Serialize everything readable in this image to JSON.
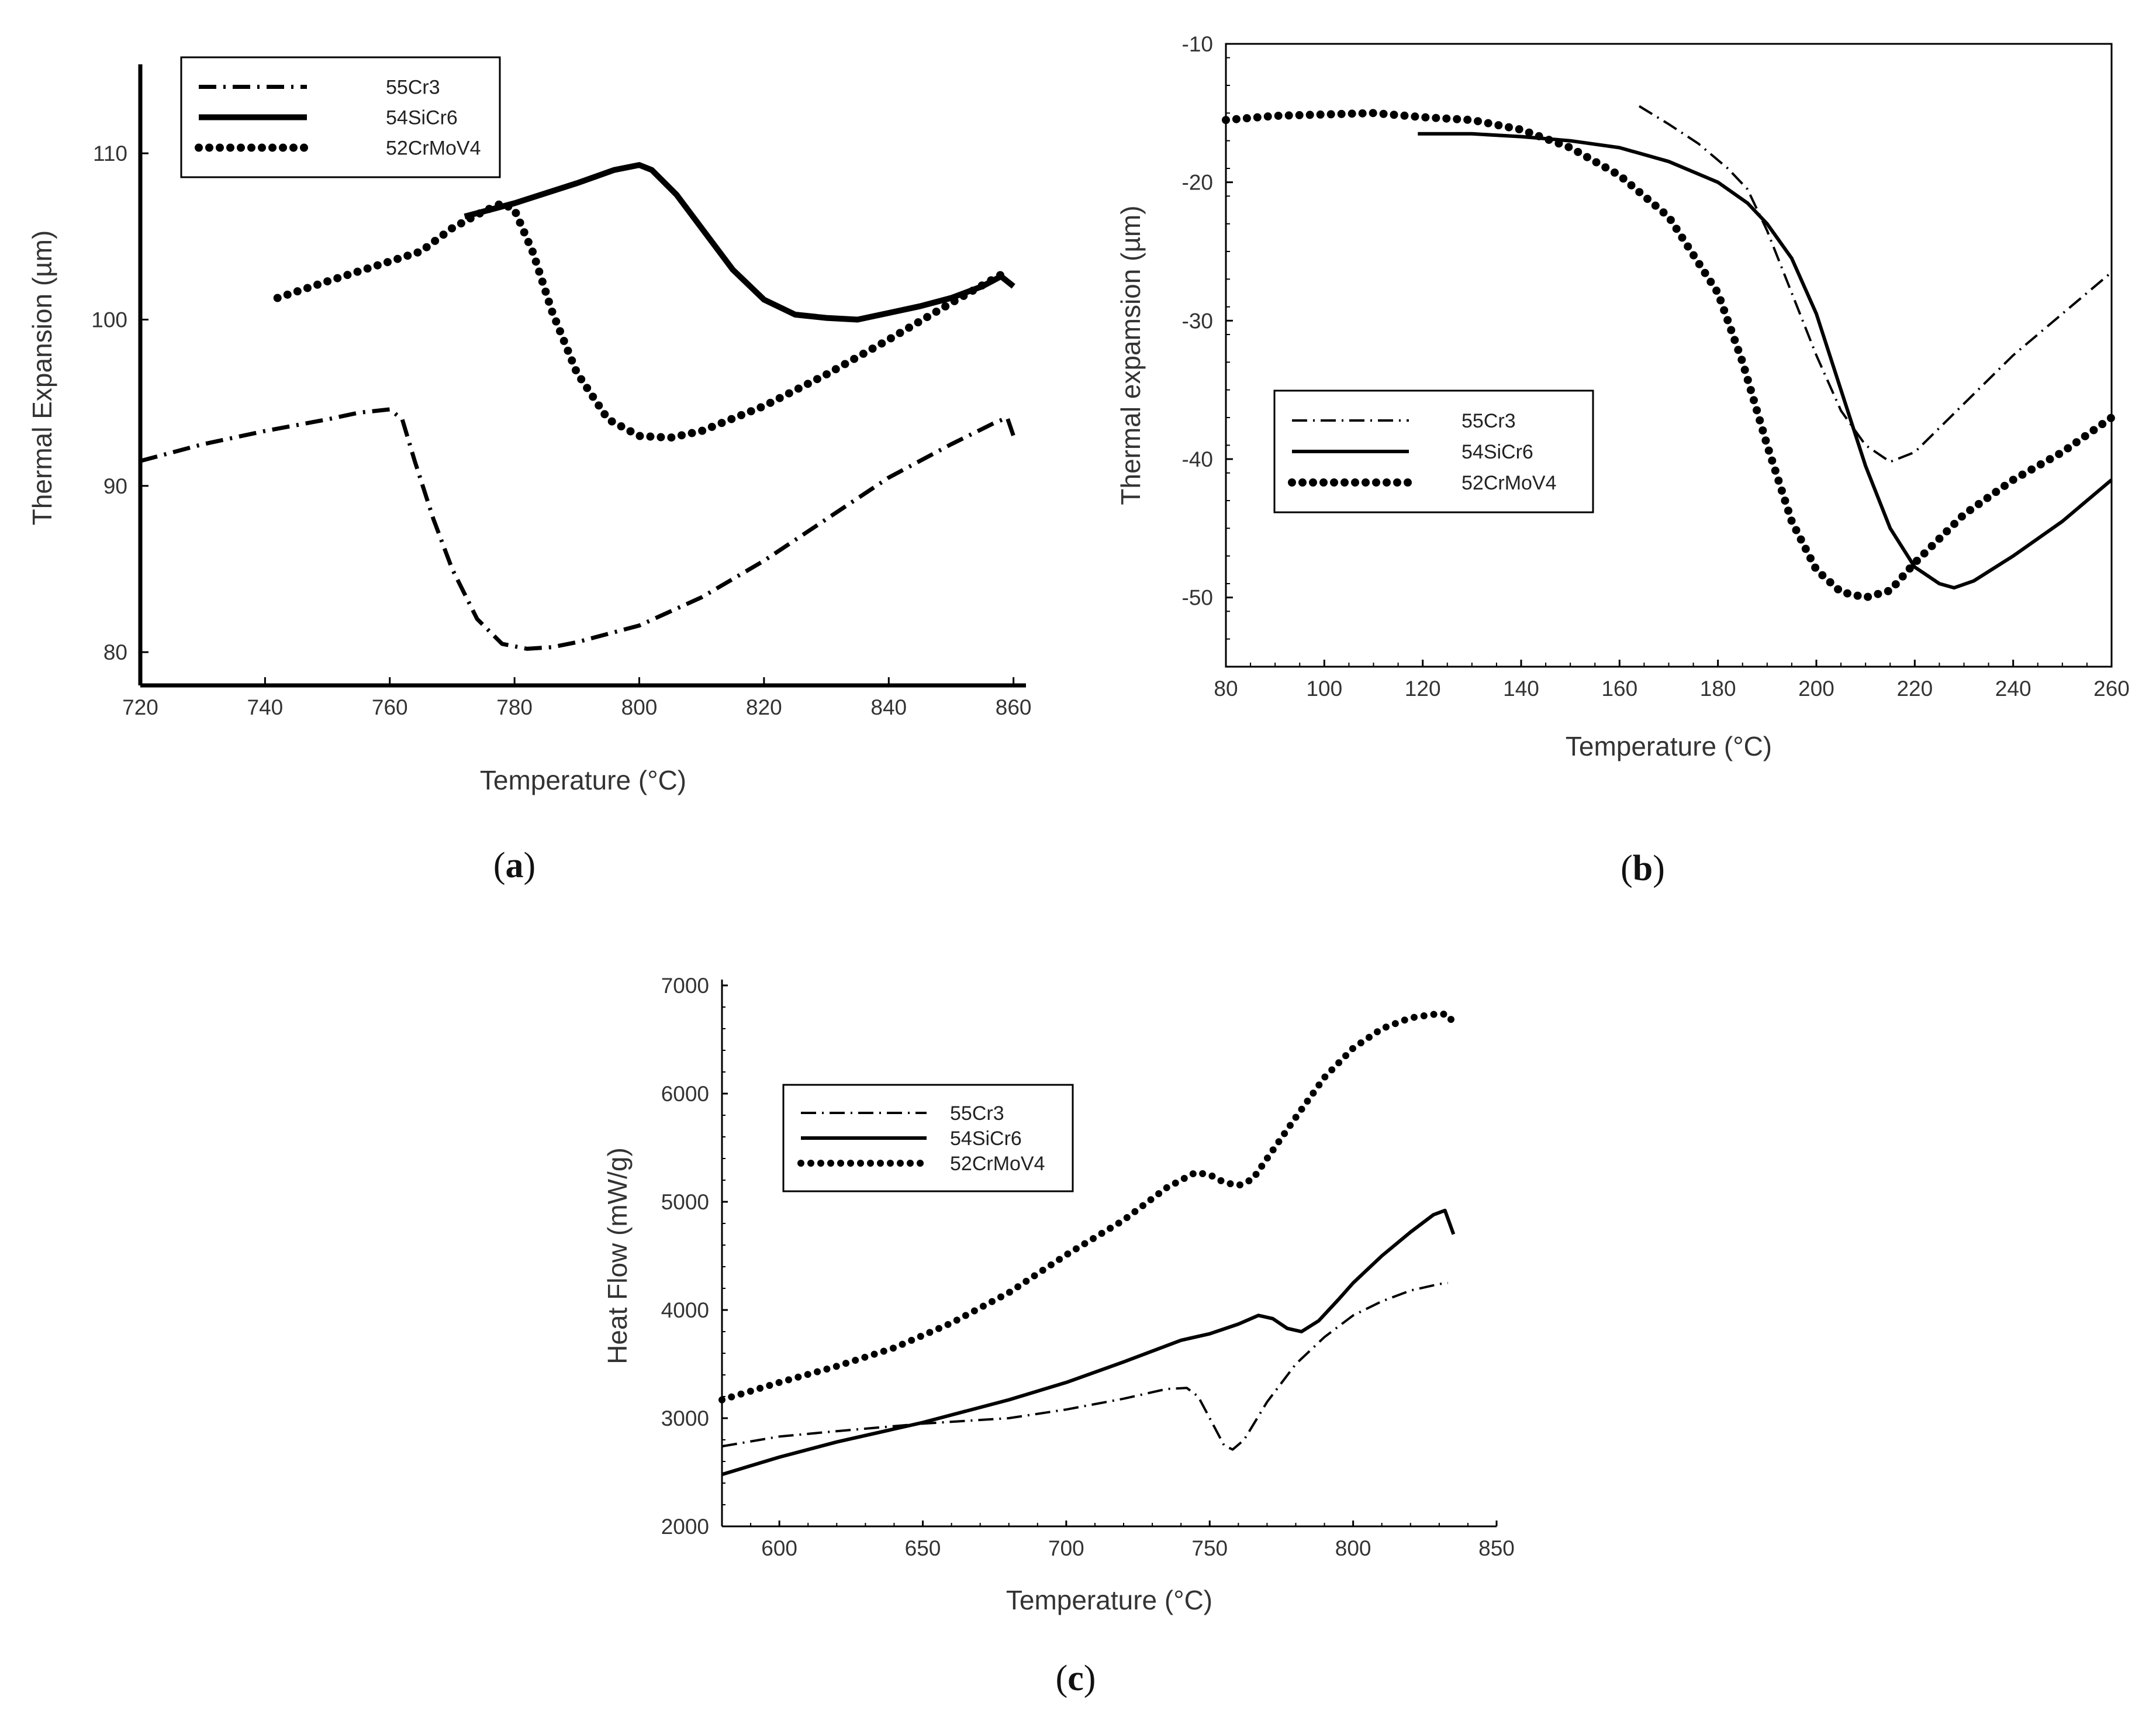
{
  "chart_data": [
    {
      "type": "line",
      "caption": "a",
      "xlabel": "Temperature (°C)",
      "ylabel": "Thermal Expansion (µm)",
      "xlim": [
        720,
        862
      ],
      "ylim": [
        78,
        115
      ],
      "xticks": [
        720,
        740,
        760,
        780,
        800,
        820,
        840,
        860
      ],
      "yticks": [
        80,
        90,
        100,
        110
      ],
      "legend_position": "top-left",
      "series": [
        {
          "name": "55Cr3",
          "style": "dashdot",
          "points": [
            [
              720,
              91.5
            ],
            [
              730,
              92.5
            ],
            [
              740,
              93.3
            ],
            [
              750,
              94.0
            ],
            [
              755,
              94.4
            ],
            [
              760,
              94.6
            ],
            [
              762,
              94.0
            ],
            [
              764,
              91.5
            ],
            [
              767,
              88.0
            ],
            [
              770,
              85.0
            ],
            [
              774,
              82.0
            ],
            [
              778,
              80.5
            ],
            [
              782,
              80.2
            ],
            [
              786,
              80.3
            ],
            [
              790,
              80.6
            ],
            [
              800,
              81.6
            ],
            [
              810,
              83.3
            ],
            [
              820,
              85.5
            ],
            [
              830,
              88.0
            ],
            [
              840,
              90.5
            ],
            [
              850,
              92.5
            ],
            [
              857,
              93.8
            ],
            [
              859,
              94.1
            ],
            [
              860,
              93.0
            ]
          ]
        },
        {
          "name": "54SiCr6",
          "style": "solid",
          "points": [
            [
              772,
              106.2
            ],
            [
              780,
              107.0
            ],
            [
              790,
              108.2
            ],
            [
              796,
              109.0
            ],
            [
              800,
              109.3
            ],
            [
              802,
              109.0
            ],
            [
              806,
              107.5
            ],
            [
              810,
              105.5
            ],
            [
              815,
              103.0
            ],
            [
              820,
              101.2
            ],
            [
              825,
              100.3
            ],
            [
              830,
              100.1
            ],
            [
              835,
              100.0
            ],
            [
              840,
              100.4
            ],
            [
              845,
              100.8
            ],
            [
              850,
              101.3
            ],
            [
              855,
              102.0
            ],
            [
              858,
              102.6
            ],
            [
              860,
              102.0
            ]
          ]
        },
        {
          "name": "52CrMoV4",
          "style": "dotted",
          "points": [
            [
              742,
              101.3
            ],
            [
              750,
              102.3
            ],
            [
              760,
              103.5
            ],
            [
              765,
              104.1
            ],
            [
              770,
              105.5
            ],
            [
              775,
              106.5
            ],
            [
              778,
              107.0
            ],
            [
              780,
              106.6
            ],
            [
              783,
              104.0
            ],
            [
              786,
              100.5
            ],
            [
              790,
              96.8
            ],
            [
              795,
              94.0
            ],
            [
              800,
              93.0
            ],
            [
              805,
              92.9
            ],
            [
              810,
              93.3
            ],
            [
              820,
              94.8
            ],
            [
              830,
              96.7
            ],
            [
              840,
              98.8
            ],
            [
              850,
              101.0
            ],
            [
              858,
              102.7
            ]
          ]
        }
      ]
    },
    {
      "type": "line",
      "caption": "b",
      "xlabel": "Temperature (°C)",
      "ylabel": "Thermal expamsion (µm)",
      "xlim": [
        80,
        260
      ],
      "ylim": [
        -55,
        -10
      ],
      "xticks": [
        80,
        100,
        120,
        140,
        160,
        180,
        200,
        220,
        240,
        260
      ],
      "yticks": [
        -10,
        -20,
        -30,
        -40,
        -50
      ],
      "legend_position": "center-left",
      "series": [
        {
          "name": "55Cr3",
          "style": "dashdot",
          "points": [
            [
              164,
              -14.5
            ],
            [
              170,
              -15.8
            ],
            [
              176,
              -17.2
            ],
            [
              182,
              -19.0
            ],
            [
              186,
              -20.5
            ],
            [
              190,
              -23.5
            ],
            [
              195,
              -28.0
            ],
            [
              200,
              -32.5
            ],
            [
              205,
              -36.5
            ],
            [
              210,
              -39.0
            ],
            [
              215,
              -40.2
            ],
            [
              220,
              -39.5
            ],
            [
              230,
              -36.0
            ],
            [
              240,
              -32.5
            ],
            [
              250,
              -29.5
            ],
            [
              260,
              -26.5
            ]
          ]
        },
        {
          "name": "54SiCr6",
          "style": "solid",
          "points": [
            [
              119,
              -16.5
            ],
            [
              130,
              -16.5
            ],
            [
              140,
              -16.7
            ],
            [
              150,
              -17.0
            ],
            [
              160,
              -17.5
            ],
            [
              170,
              -18.5
            ],
            [
              180,
              -20.0
            ],
            [
              186,
              -21.5
            ],
            [
              190,
              -23.0
            ],
            [
              195,
              -25.5
            ],
            [
              200,
              -29.5
            ],
            [
              205,
              -35.0
            ],
            [
              210,
              -40.5
            ],
            [
              215,
              -45.0
            ],
            [
              220,
              -47.8
            ],
            [
              225,
              -49.0
            ],
            [
              228,
              -49.3
            ],
            [
              232,
              -48.8
            ],
            [
              240,
              -47.0
            ],
            [
              250,
              -44.5
            ],
            [
              260,
              -41.5
            ]
          ]
        },
        {
          "name": "52CrMoV4",
          "style": "dotted",
          "points": [
            [
              80,
              -15.5
            ],
            [
              90,
              -15.2
            ],
            [
              100,
              -15.1
            ],
            [
              110,
              -15.0
            ],
            [
              120,
              -15.3
            ],
            [
              130,
              -15.5
            ],
            [
              140,
              -16.2
            ],
            [
              150,
              -17.5
            ],
            [
              160,
              -19.5
            ],
            [
              170,
              -22.5
            ],
            [
              180,
              -28.0
            ],
            [
              185,
              -33.0
            ],
            [
              190,
              -39.0
            ],
            [
              195,
              -44.5
            ],
            [
              200,
              -48.0
            ],
            [
              205,
              -49.6
            ],
            [
              210,
              -50.0
            ],
            [
              215,
              -49.5
            ],
            [
              220,
              -47.5
            ],
            [
              230,
              -44.0
            ],
            [
              240,
              -41.5
            ],
            [
              250,
              -39.5
            ],
            [
              260,
              -37.0
            ]
          ]
        }
      ]
    },
    {
      "type": "line",
      "caption": "c",
      "xlabel": "Temperature (°C)",
      "ylabel": "Heat Flow (mW/g)",
      "xlim": [
        580,
        850
      ],
      "ylim": [
        2000,
        7000
      ],
      "xticks": [
        600,
        650,
        700,
        750,
        800,
        850
      ],
      "yticks": [
        2000,
        3000,
        4000,
        5000,
        6000,
        7000
      ],
      "legend_position": "top-left",
      "series": [
        {
          "name": "55Cr3",
          "style": "dashdot",
          "points": [
            [
              580,
              2740
            ],
            [
              600,
              2830
            ],
            [
              620,
              2880
            ],
            [
              650,
              2950
            ],
            [
              680,
              3000
            ],
            [
              700,
              3080
            ],
            [
              720,
              3180
            ],
            [
              735,
              3270
            ],
            [
              742,
              3280
            ],
            [
              746,
              3200
            ],
            [
              750,
              3000
            ],
            [
              755,
              2750
            ],
            [
              758,
              2710
            ],
            [
              762,
              2800
            ],
            [
              770,
              3150
            ],
            [
              780,
              3500
            ],
            [
              790,
              3750
            ],
            [
              800,
              3950
            ],
            [
              810,
              4080
            ],
            [
              820,
              4180
            ],
            [
              830,
              4240
            ],
            [
              833,
              4250
            ]
          ]
        },
        {
          "name": "54SiCr6",
          "style": "solid",
          "points": [
            [
              580,
              2480
            ],
            [
              600,
              2640
            ],
            [
              620,
              2780
            ],
            [
              650,
              2960
            ],
            [
              680,
              3170
            ],
            [
              700,
              3330
            ],
            [
              720,
              3520
            ],
            [
              740,
              3720
            ],
            [
              750,
              3780
            ],
            [
              760,
              3870
            ],
            [
              767,
              3950
            ],
            [
              772,
              3920
            ],
            [
              777,
              3830
            ],
            [
              782,
              3800
            ],
            [
              788,
              3900
            ],
            [
              795,
              4100
            ],
            [
              800,
              4250
            ],
            [
              810,
              4500
            ],
            [
              820,
              4720
            ],
            [
              828,
              4880
            ],
            [
              832,
              4920
            ],
            [
              835,
              4700
            ]
          ]
        },
        {
          "name": "52CrMoV4",
          "style": "dotted",
          "points": [
            [
              580,
              3170
            ],
            [
              600,
              3330
            ],
            [
              620,
              3480
            ],
            [
              640,
              3650
            ],
            [
              660,
              3880
            ],
            [
              680,
              4160
            ],
            [
              700,
              4510
            ],
            [
              720,
              4830
            ],
            [
              735,
              5130
            ],
            [
              745,
              5270
            ],
            [
              750,
              5250
            ],
            [
              755,
              5180
            ],
            [
              760,
              5150
            ],
            [
              765,
              5210
            ],
            [
              770,
              5400
            ],
            [
              780,
              5780
            ],
            [
              790,
              6150
            ],
            [
              800,
              6420
            ],
            [
              810,
              6600
            ],
            [
              820,
              6700
            ],
            [
              830,
              6740
            ],
            [
              833,
              6730
            ],
            [
              835,
              6650
            ]
          ]
        }
      ]
    }
  ]
}
